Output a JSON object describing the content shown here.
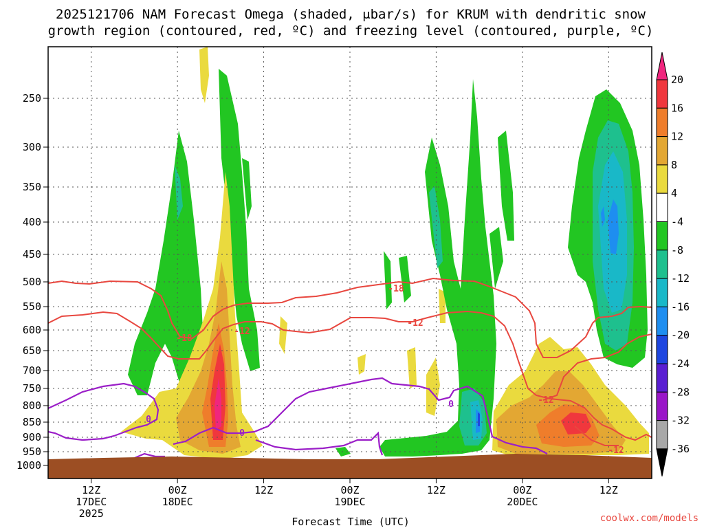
{
  "chart_data": {
    "type": "heatmap",
    "title_line1": "2025121706 NAM Forecast Omega (shaded, μbar/s) for KRUM with dendritic snow",
    "title_line2": "growth region (contoured, red, ºC) and freezing level (contoured, purple, ºC)",
    "xlabel": "Forecast Time (UTC)",
    "credit": "coolwx.com/models",
    "x_ticks": [
      {
        "hour": 12,
        "l1": "12Z",
        "l2": "17DEC",
        "l3": "2025"
      },
      {
        "hour": 24,
        "l1": "00Z",
        "l2": "18DEC",
        "l3": ""
      },
      {
        "hour": 36,
        "l1": "12Z",
        "l2": "",
        "l3": ""
      },
      {
        "hour": 48,
        "l1": "00Z",
        "l2": "19DEC",
        "l3": ""
      },
      {
        "hour": 60,
        "l1": "12Z",
        "l2": "",
        "l3": ""
      },
      {
        "hour": 72,
        "l1": "00Z",
        "l2": "20DEC",
        "l3": ""
      },
      {
        "hour": 84,
        "l1": "12Z",
        "l2": "",
        "l3": ""
      }
    ],
    "x_range_hours": [
      6,
      90
    ],
    "y_ticks": [
      "250",
      "300",
      "350",
      "400",
      "450",
      "500",
      "550",
      "600",
      "650",
      "700",
      "750",
      "800",
      "850",
      "900",
      "950",
      "1000"
    ],
    "y_range_hPa": [
      200,
      1025
    ],
    "grid": true,
    "colorbar": {
      "labels": [
        "20",
        "16",
        "12",
        "8",
        "4",
        "-4",
        "-8",
        "-12",
        "-16",
        "-20",
        "-24",
        "-28",
        "-32",
        "-36"
      ],
      "colors": [
        "#f0267e",
        "#f0373d",
        "#ef7d2b",
        "#e3a733",
        "#eada3e",
        "#ffffff",
        "#22c622",
        "#1ec08e",
        "#19b8c8",
        "#1e8ef0",
        "#1e46e0",
        "#5a1ed2",
        "#9a16c8",
        "#a8a8a8",
        "#000000"
      ]
    },
    "contour_labels": [
      {
        "text": "-18",
        "color": "#e8473f"
      },
      {
        "text": "-12",
        "color": "#e8473f"
      },
      {
        "text": "-18",
        "color": "#e8473f"
      },
      {
        "text": "-12",
        "color": "#e8473f"
      },
      {
        "text": "-12",
        "color": "#e8473f"
      },
      {
        "text": "-12",
        "color": "#e8473f"
      },
      {
        "text": "0",
        "color": "#9b1fc8"
      },
      {
        "text": "0",
        "color": "#9b1fc8"
      },
      {
        "text": "0",
        "color": "#9b1fc8"
      }
    ],
    "colors": {
      "ground": "#9c4e23",
      "dgz_contour": "#e8473f",
      "freezing_contour": "#9b1fc8"
    }
  }
}
